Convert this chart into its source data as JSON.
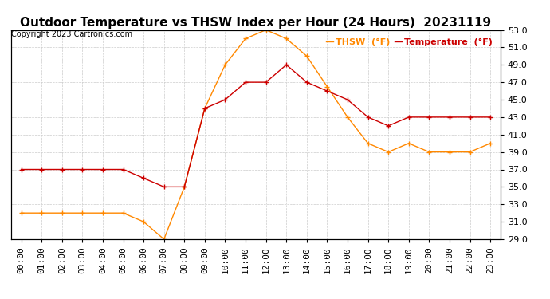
{
  "title": "Outdoor Temperature vs THSW Index per Hour (24 Hours)  20231119",
  "copyright": "Copyright 2023 Cartronics.com",
  "hours": [
    "00:00",
    "01:00",
    "02:00",
    "03:00",
    "04:00",
    "05:00",
    "06:00",
    "07:00",
    "08:00",
    "09:00",
    "10:00",
    "11:00",
    "12:00",
    "13:00",
    "14:00",
    "15:00",
    "16:00",
    "17:00",
    "18:00",
    "19:00",
    "20:00",
    "21:00",
    "22:00",
    "23:00"
  ],
  "temperature": [
    37.0,
    37.0,
    37.0,
    37.0,
    37.0,
    37.0,
    36.0,
    35.0,
    35.0,
    44.0,
    45.0,
    47.0,
    47.0,
    49.0,
    47.0,
    46.0,
    45.0,
    43.0,
    42.0,
    43.0,
    43.0,
    43.0,
    43.0,
    43.0
  ],
  "thsw": [
    32.0,
    32.0,
    32.0,
    32.0,
    32.0,
    32.0,
    31.0,
    29.0,
    35.0,
    44.0,
    49.0,
    52.0,
    53.0,
    52.0,
    50.0,
    46.5,
    43.0,
    40.0,
    39.0,
    40.0,
    39.0,
    39.0,
    39.0,
    40.0
  ],
  "temp_color": "#cc0000",
  "thsw_color": "#ff8800",
  "ylim_min": 29.0,
  "ylim_max": 53.0,
  "ytick_interval": 2.0,
  "background_color": "#ffffff",
  "grid_color": "#cccccc",
  "title_fontsize": 11,
  "axis_fontsize": 8,
  "copyright_fontsize": 7,
  "legend_thsw": "THSW  (°F)",
  "legend_temp": "Temperature  (°F)"
}
